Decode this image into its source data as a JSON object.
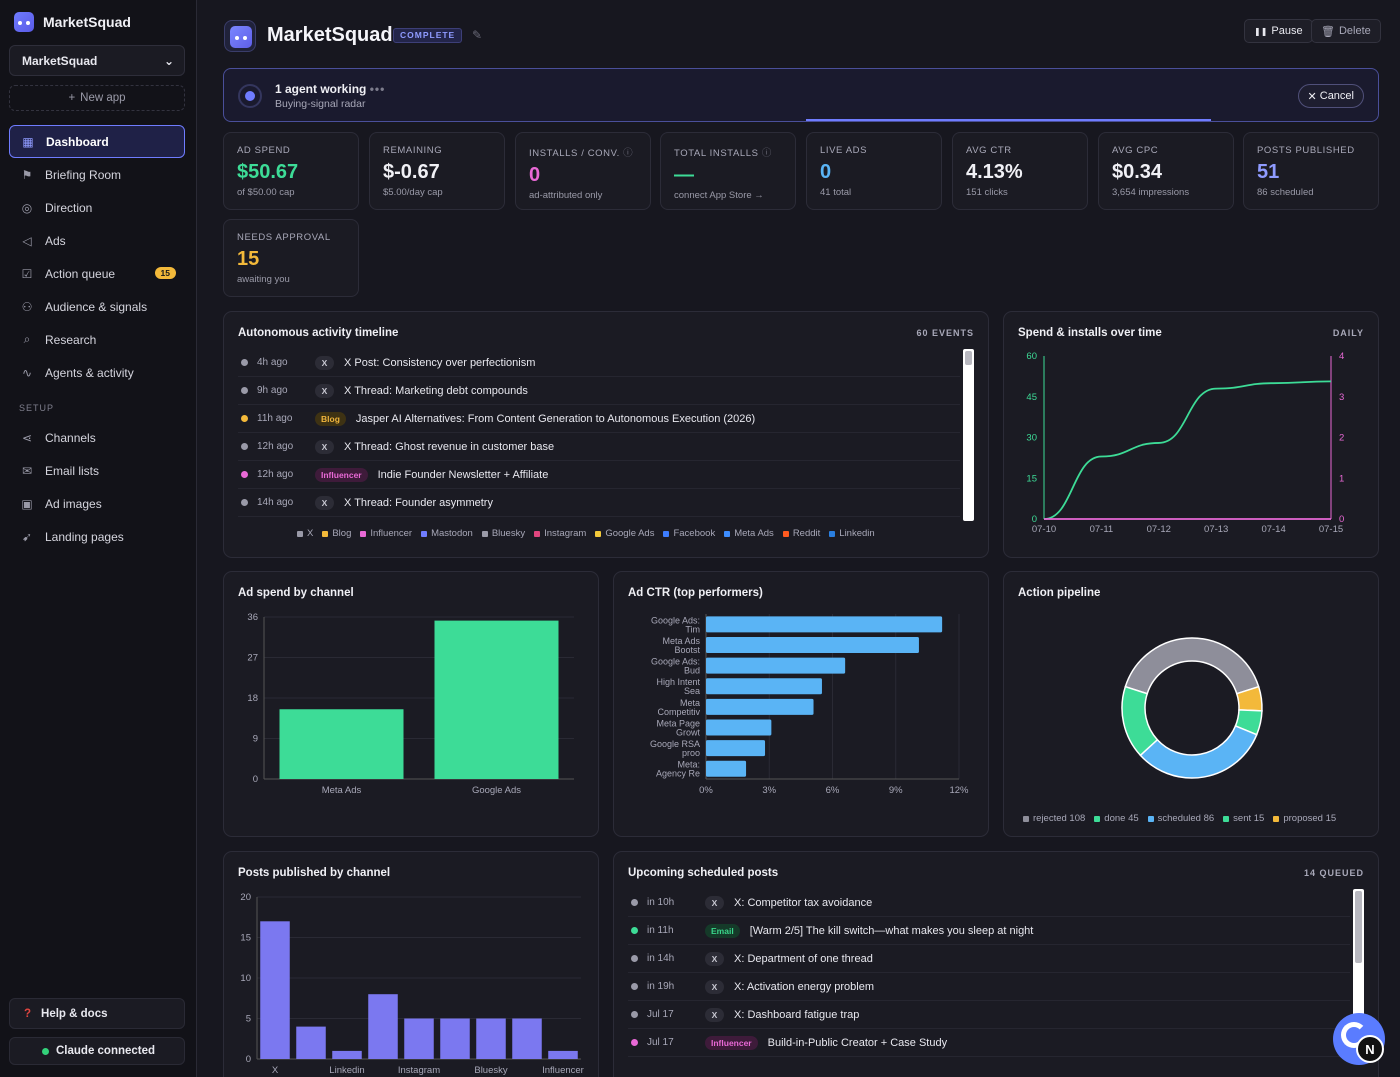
{
  "sidebar": {
    "brand": "MarketSquad",
    "app_select": "MarketSquad",
    "new_app": "New app",
    "nav": [
      {
        "label": "Dashboard",
        "icon": "grid-icon",
        "glyph": "▦"
      },
      {
        "label": "Briefing Room",
        "icon": "flag-icon",
        "glyph": "⚑"
      },
      {
        "label": "Direction",
        "icon": "compass-icon",
        "glyph": "◎"
      },
      {
        "label": "Ads",
        "icon": "megaphone-icon",
        "glyph": "◁"
      },
      {
        "label": "Action queue",
        "icon": "checkbox-icon",
        "glyph": "☑",
        "badge": "15"
      },
      {
        "label": "Audience & signals",
        "icon": "users-icon",
        "glyph": "⚇"
      },
      {
        "label": "Research",
        "icon": "search-icon",
        "glyph": "⌕"
      },
      {
        "label": "Agents & activity",
        "icon": "activity-icon",
        "glyph": "∿"
      }
    ],
    "setup_label": "SETUP",
    "setup": [
      {
        "label": "Channels",
        "icon": "share-icon",
        "glyph": "⋖"
      },
      {
        "label": "Email lists",
        "icon": "mail-icon",
        "glyph": "✉"
      },
      {
        "label": "Ad images",
        "icon": "image-icon",
        "glyph": "▣"
      },
      {
        "label": "Landing pages",
        "icon": "rocket-icon",
        "glyph": "➹"
      }
    ],
    "help": "Help & docs",
    "claude": "Claude connected"
  },
  "header": {
    "title": "MarketSquad",
    "status": "COMPLETE",
    "pause": "Pause",
    "delete": "Delete"
  },
  "agent": {
    "title": "1 agent working",
    "dots": "•••",
    "subtitle": "Buying-signal radar",
    "cancel": "Cancel"
  },
  "stats": [
    {
      "label": "AD SPEND",
      "value": "$50.67",
      "sub": "of $50.00 cap",
      "color": "#3ddc97"
    },
    {
      "label": "REMAINING",
      "value": "$-0.67",
      "sub": "$5.00/day cap",
      "color": "#f0f0f5"
    },
    {
      "label": "INSTALLS / CONV.",
      "value": "0",
      "sub": "ad-attributed only",
      "color": "#e969d6",
      "info": true
    },
    {
      "label": "TOTAL INSTALLS",
      "value": "—",
      "sub": "connect App Store →",
      "color": "#3ddc97",
      "info": true
    },
    {
      "label": "LIVE ADS",
      "value": "0",
      "sub": "41 total",
      "color": "#5ab4f5"
    },
    {
      "label": "AVG CTR",
      "value": "4.13%",
      "sub": "151 clicks",
      "color": "#f0f0f5"
    },
    {
      "label": "AVG CPC",
      "value": "$0.34",
      "sub": "3,654 impressions",
      "color": "#f0f0f5"
    },
    {
      "label": "POSTS PUBLISHED",
      "value": "51",
      "sub": "86 scheduled",
      "color": "#8f9bff"
    },
    {
      "label": "NEEDS APPROVAL",
      "value": "15",
      "sub": "awaiting you",
      "color": "#f3b93a"
    }
  ],
  "timeline": {
    "title": "Autonomous activity timeline",
    "meta": "60 EVENTS",
    "rows": [
      {
        "time": "4h ago",
        "tag": "X",
        "kind": "x",
        "text": "X Post: Consistency over perfectionism",
        "dot": "#9a9aa8"
      },
      {
        "time": "9h ago",
        "tag": "X",
        "kind": "x",
        "text": "X Thread: Marketing debt compounds",
        "dot": "#9a9aa8"
      },
      {
        "time": "11h ago",
        "tag": "Blog",
        "kind": "blog",
        "text": "Jasper AI Alternatives: From Content Generation to Autonomous Execution (2026)",
        "dot": "#f3b93a"
      },
      {
        "time": "12h ago",
        "tag": "X",
        "kind": "x",
        "text": "X Thread: Ghost revenue in customer base",
        "dot": "#9a9aa8"
      },
      {
        "time": "12h ago",
        "tag": "Influencer",
        "kind": "infl",
        "text": "Indie Founder Newsletter + Affiliate",
        "dot": "#e969d6"
      },
      {
        "time": "14h ago",
        "tag": "X",
        "kind": "x",
        "text": "X Thread: Founder asymmetry",
        "dot": "#9a9aa8"
      }
    ],
    "legend": [
      {
        "name": "X",
        "color": "#9a9aa8"
      },
      {
        "name": "Blog",
        "color": "#f3b93a"
      },
      {
        "name": "Influencer",
        "color": "#e969d6"
      },
      {
        "name": "Mastodon",
        "color": "#6f7cff"
      },
      {
        "name": "Bluesky",
        "color": "#9a9aa8"
      },
      {
        "name": "Instagram",
        "color": "#e0457e"
      },
      {
        "name": "Google Ads",
        "color": "#f3c93a"
      },
      {
        "name": "Facebook",
        "color": "#3d7dff"
      },
      {
        "name": "Meta Ads",
        "color": "#3d8dff"
      },
      {
        "name": "Reddit",
        "color": "#ff5a1f"
      },
      {
        "name": "Linkedin",
        "color": "#2a7fe0"
      }
    ]
  },
  "spend_panel": {
    "title": "Spend & installs over time",
    "meta": "DAILY"
  },
  "adspend_panel": {
    "title": "Ad spend by channel"
  },
  "ctr_panel": {
    "title": "Ad CTR (top performers)"
  },
  "pipeline_panel": {
    "title": "Action pipeline"
  },
  "posts_panel": {
    "title": "Posts published by channel"
  },
  "upcoming": {
    "title": "Upcoming scheduled posts",
    "meta": "14 QUEUED",
    "rows": [
      {
        "time": "in 10h",
        "tag": "X",
        "kind": "x",
        "text": "X: Competitor tax avoidance",
        "dot": "#9a9aa8"
      },
      {
        "time": "in 11h",
        "tag": "Email",
        "kind": "email",
        "text": "[Warm 2/5] The kill switch—what makes you sleep at night",
        "dot": "#3ddc97"
      },
      {
        "time": "in 14h",
        "tag": "X",
        "kind": "x",
        "text": "X: Department of one thread",
        "dot": "#9a9aa8"
      },
      {
        "time": "in 19h",
        "tag": "X",
        "kind": "x",
        "text": "X: Activation energy problem",
        "dot": "#9a9aa8"
      },
      {
        "time": "Jul 17",
        "tag": "X",
        "kind": "x",
        "text": "X: Dashboard fatigue trap",
        "dot": "#9a9aa8"
      },
      {
        "time": "Jul 17",
        "tag": "Influencer",
        "kind": "infl",
        "text": "Build-in-Public Creator + Case Study",
        "dot": "#e969d6"
      }
    ]
  },
  "fab": {
    "label": "N"
  },
  "chart_data": [
    {
      "id": "spend",
      "type": "line",
      "x": [
        "07-10",
        "07-11",
        "07-12",
        "07-13",
        "07-14",
        "07-15"
      ],
      "series": [
        {
          "values": [
            0,
            23,
            28,
            48,
            50,
            50.67
          ],
          "color": "#3ddc97",
          "axis": "left"
        },
        {
          "values": [
            0,
            0,
            0,
            0,
            0,
            0
          ],
          "color": "#e969d6",
          "axis": "right"
        }
      ],
      "ylim": [
        0,
        60
      ],
      "yticks": [
        0,
        15,
        30,
        45,
        60
      ],
      "y2lim": [
        0,
        4
      ],
      "y2ticks": [
        0,
        1,
        2,
        3,
        4
      ]
    },
    {
      "id": "adspend",
      "type": "bar",
      "categories": [
        "Meta Ads",
        "Google Ads"
      ],
      "values": [
        15.5,
        35.2
      ],
      "ylim": [
        0,
        36
      ],
      "yticks": [
        0,
        9,
        18,
        27,
        36
      ],
      "color": "#3ddc97"
    },
    {
      "id": "ctr",
      "type": "bar",
      "orientation": "horizontal",
      "categories": [
        [
          "Google Ads:",
          "Tim"
        ],
        [
          "Meta Ads",
          "Bootst"
        ],
        [
          "Google Ads:",
          "Bud"
        ],
        [
          "High Intent",
          "Sea"
        ],
        [
          "Meta",
          "Competitiv"
        ],
        [
          "Meta Page",
          "Growt"
        ],
        [
          "Google RSA",
          "proo"
        ],
        [
          "Meta:",
          "Agency Re"
        ]
      ],
      "values": [
        11.2,
        10.1,
        6.6,
        5.5,
        5.1,
        3.1,
        2.8,
        1.9
      ],
      "xlim": [
        0,
        12
      ],
      "xticks": [
        "0%",
        "3%",
        "6%",
        "9%",
        "12%"
      ],
      "color": "#5ab4f5"
    },
    {
      "id": "pipeline",
      "type": "pie",
      "slices": [
        {
          "name": "rejected",
          "value": 108,
          "color": "#8e8e9a"
        },
        {
          "name": "proposed",
          "value": 15,
          "color": "#f3b93a"
        },
        {
          "name": "sent",
          "value": 15,
          "color": "#3ddc97"
        },
        {
          "name": "scheduled",
          "value": 86,
          "color": "#5ab4f5"
        },
        {
          "name": "done",
          "value": 45,
          "color": "#3ddc97"
        }
      ],
      "legend": [
        {
          "label": "rejected 108",
          "color": "#8e8e9a"
        },
        {
          "label": "done 45",
          "color": "#3ddc97"
        },
        {
          "label": "scheduled 86",
          "color": "#5ab4f5"
        },
        {
          "label": "sent 15",
          "color": "#3ddc97"
        },
        {
          "label": "proposed 15",
          "color": "#f3b93a"
        }
      ]
    },
    {
      "id": "posts",
      "type": "bar",
      "categories": [
        "X",
        "",
        "Linkedin",
        "",
        "Instagram",
        "",
        "Bluesky",
        "",
        "Influencer"
      ],
      "values": [
        17,
        4,
        1,
        8,
        5,
        5,
        5,
        5,
        1
      ],
      "ylim": [
        0,
        20
      ],
      "yticks": [
        0,
        5,
        10,
        15,
        20
      ],
      "color": "#7b78f0"
    }
  ]
}
